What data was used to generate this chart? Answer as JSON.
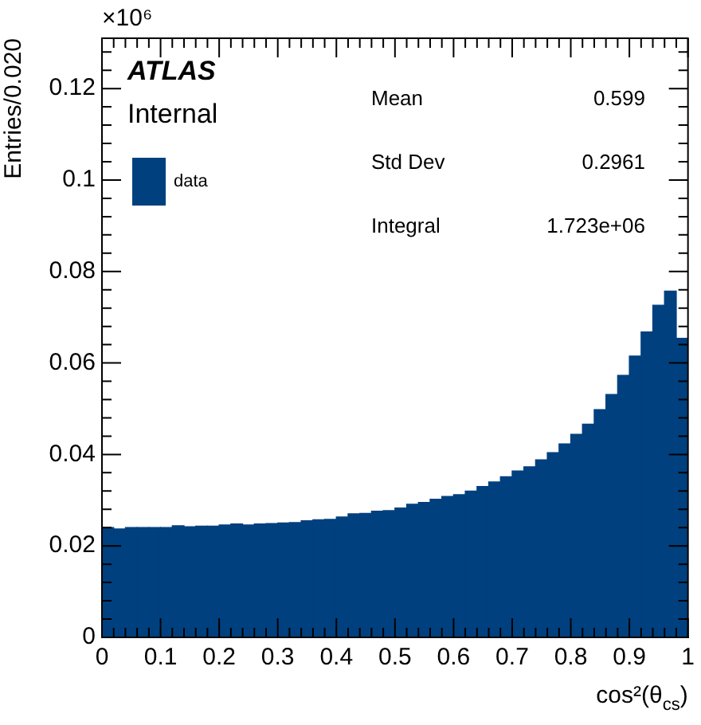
{
  "chart_data": {
    "type": "histogram",
    "xlabel": "cos²(θ$_{cs}$)",
    "ylabel": "Entries/0.020",
    "bins": [
      0,
      0.02,
      0.04,
      0.06,
      0.08,
      0.1,
      0.12,
      0.14,
      0.16,
      0.18,
      0.2,
      0.22,
      0.24,
      0.26,
      0.28,
      0.3,
      0.32,
      0.34,
      0.36,
      0.38,
      0.4,
      0.42,
      0.44,
      0.46,
      0.48,
      0.5,
      0.52,
      0.54,
      0.56,
      0.58,
      0.6,
      0.62,
      0.64,
      0.66,
      0.68,
      0.7,
      0.72,
      0.74,
      0.76,
      0.78,
      0.8,
      0.82,
      0.84,
      0.86,
      0.88,
      0.9,
      0.92,
      0.94,
      0.96,
      0.98,
      1
    ],
    "series": [
      {
        "name": "data",
        "color": "#00407f",
        "values": [
          0.024,
          0.0237,
          0.024,
          0.024,
          0.024,
          0.024,
          0.0244,
          0.0242,
          0.0243,
          0.0243,
          0.0246,
          0.0248,
          0.0246,
          0.0248,
          0.0249,
          0.025,
          0.0251,
          0.0255,
          0.0257,
          0.0258,
          0.0263,
          0.027,
          0.0271,
          0.0276,
          0.0277,
          0.0283,
          0.0291,
          0.0295,
          0.0302,
          0.0308,
          0.0312,
          0.032,
          0.033,
          0.034,
          0.0351,
          0.0364,
          0.0373,
          0.0388,
          0.0404,
          0.0423,
          0.0444,
          0.0466,
          0.0498,
          0.0531,
          0.0573,
          0.0615,
          0.0668,
          0.0726,
          0.0757,
          0.0654
        ]
      }
    ],
    "xlim": [
      0,
      1
    ],
    "xticks": [
      0,
      0.1,
      0.2,
      0.3,
      0.4,
      0.5,
      0.6,
      0.7,
      0.8,
      0.9,
      1
    ],
    "ylim": [
      0,
      0.131
    ],
    "yticks": [
      0,
      0.02,
      0.04,
      0.06,
      0.08,
      0.1,
      0.12
    ],
    "legend": "top left",
    "annotations": [
      "×10⁶",
      "ATLAS",
      "Internal",
      "Mean",
      "0.599",
      "Std Dev",
      "0.2961",
      "Integral",
      "1.723e+06"
    ]
  }
}
